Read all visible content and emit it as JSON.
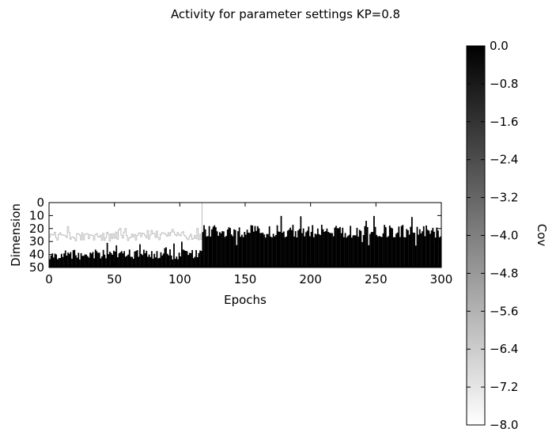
{
  "chart_data": {
    "type": "heatmap",
    "title": "Activity for parameter settings KP=0.8",
    "xlabel": "Epochs",
    "ylabel": "Dimension",
    "xlim": [
      0,
      300
    ],
    "ylim": [
      0,
      50
    ],
    "y_inverted": true,
    "grid": false,
    "xticks": [
      0,
      50,
      100,
      150,
      200,
      250,
      300
    ],
    "yticks": [
      0,
      10,
      20,
      30,
      40,
      50
    ],
    "colorbar": {
      "label": "Cov",
      "range": [
        -8.0,
        0.0
      ],
      "ticks": [
        "0.0",
        "−0.8",
        "−1.6",
        "−2.4",
        "−3.2",
        "−4.0",
        "−4.8",
        "−5.6",
        "−6.4",
        "−7.2",
        "−8.0"
      ],
      "colormap": "gray (white = −8.0, black = 0.0)"
    },
    "regions": [
      {
        "epochs": [
          0,
          117
        ],
        "light_trace_dimension_approx": 26,
        "dense_black_from_dimension_approx": 40
      },
      {
        "epochs": [
          117,
          300
        ],
        "dense_black_from_dimension_approx": 22,
        "min_active_dimension_approx": 10
      }
    ],
    "colors": {
      "low": "#ffffff",
      "high": "#000000",
      "trace": "#bfbfbf"
    }
  }
}
